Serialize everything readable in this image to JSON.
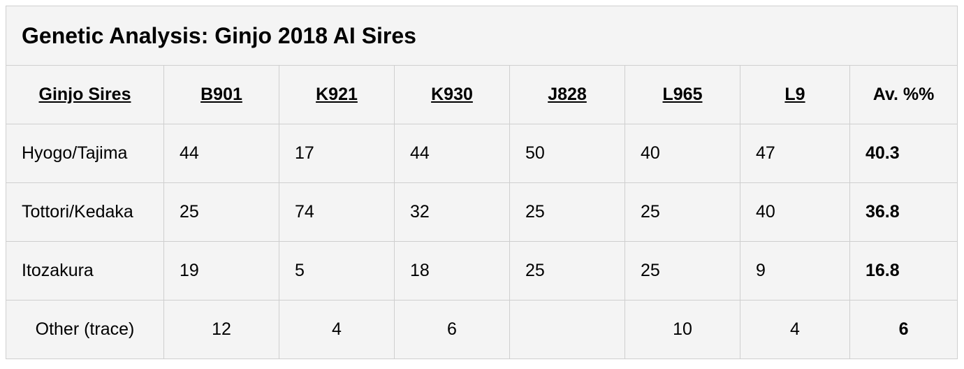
{
  "title": "Genetic Analysis: Ginjo 2018 AI Sires",
  "table": {
    "header": [
      "Ginjo Sires",
      "B901",
      "K921",
      "K930",
      "J828",
      "L965",
      "L9",
      "Av. %%"
    ],
    "rows": [
      [
        "Hyogo/Tajima",
        44,
        17,
        44,
        50,
        40,
        47,
        40.3
      ],
      [
        "Tottori/Kedaka",
        25,
        74,
        32,
        25,
        25,
        40,
        36.8
      ],
      [
        "Itozakura",
        19,
        5,
        18,
        25,
        25,
        9,
        16.8
      ],
      [
        "Other (trace)",
        12,
        4,
        6,
        null,
        10,
        4,
        6
      ]
    ]
  }
}
